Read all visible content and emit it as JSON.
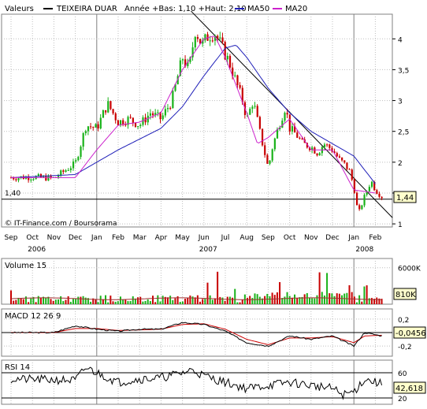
{
  "header": {
    "label": "Valeurs",
    "stock": "TEIXEIRA DUAR",
    "range_text": "Année +Bas: 1,10 +Haut: 2,10",
    "ma50_label": "MA50",
    "ma20_label": "MA20"
  },
  "colors": {
    "stock": "#000000",
    "ma50": "#1f1fb8",
    "ma20": "#cc22cc",
    "up": "#19b219",
    "down": "#c80000",
    "grid": "#bfbfbf",
    "frame": "#808080",
    "macd": "#000000",
    "signal": "#cc0000",
    "volume_ma": "#a03030"
  },
  "credit": "© IT-Finance.com / Boursorama",
  "ref_label": "1,40",
  "last_price_label": "1,44",
  "months": [
    "Sep",
    "Oct",
    "Nov",
    "Dec",
    "Jan",
    "Feb",
    "Mar",
    "Apr",
    "May",
    "Jun",
    "Jul",
    "Aug",
    "Sep",
    "Oct",
    "Nov",
    "Dec",
    "Jan",
    "Feb"
  ],
  "years": [
    "2006",
    "2007",
    "2008"
  ],
  "price_ticks": [
    "4",
    "3,5",
    "3",
    "2,5",
    "2",
    "1,5",
    "1"
  ],
  "volume": {
    "label": "Volume 15",
    "ticks": [
      "6000K"
    ],
    "last_label": "810K"
  },
  "macd": {
    "label": "MACD 12 26 9",
    "ticks": [
      "0,2",
      "-0,2"
    ],
    "last_label": "-0,0456"
  },
  "rsi": {
    "label": "RSI 14",
    "ticks": [
      "60",
      "20"
    ],
    "last_label": "42,618"
  },
  "chart_data": {
    "type": "candlestick",
    "title": "TEIXEIRA DUAR",
    "x_range": [
      "2006-09",
      "2008-02"
    ],
    "ylim": [
      0.95,
      4.4
    ],
    "reference_line": 1.4,
    "last_price": 1.44,
    "close_points": {
      "x_month_index": [
        0,
        1,
        2,
        3,
        3.5,
        4,
        4.5,
        5,
        5.5,
        6,
        6.5,
        7,
        7.5,
        8,
        8.3,
        8.6,
        8.9,
        9.2,
        9.5,
        9.8,
        10.2,
        10.5,
        10.8,
        11,
        11.3,
        11.6,
        12,
        12.2,
        12.5,
        12.8,
        13,
        13.3,
        13.6,
        14,
        14.3,
        14.6,
        15,
        15.3,
        15.6,
        15.8,
        16,
        16.2,
        16.5,
        16.8,
        17,
        17.3
      ],
      "close": [
        1.75,
        1.76,
        1.74,
        1.98,
        2.6,
        2.55,
        2.95,
        2.65,
        2.7,
        2.6,
        2.8,
        2.7,
        3.0,
        3.7,
        3.5,
        4.15,
        3.9,
        4.05,
        4.1,
        3.9,
        3.6,
        3.3,
        3.0,
        2.7,
        3.0,
        2.5,
        1.9,
        2.25,
        2.6,
        2.9,
        2.55,
        2.45,
        2.3,
        2.25,
        2.15,
        2.3,
        2.2,
        2.05,
        1.95,
        1.85,
        1.6,
        1.15,
        1.45,
        1.7,
        1.55,
        1.44
      ]
    },
    "ma50": {
      "x_month_index": [
        0,
        3,
        5,
        7,
        8,
        9,
        10,
        10.5,
        11,
        12,
        13,
        14,
        15,
        16,
        17
      ],
      "values": [
        1.75,
        1.8,
        2.2,
        2.55,
        2.9,
        3.4,
        3.85,
        3.9,
        3.7,
        3.2,
        2.8,
        2.5,
        2.3,
        2.1,
        1.65
      ]
    },
    "ma20": {
      "x_month_index": [
        0,
        3,
        4,
        5,
        6,
        7,
        8,
        9,
        9.5,
        10,
        11,
        11.5,
        12,
        13,
        14,
        15,
        16,
        17
      ],
      "values": [
        1.75,
        1.75,
        2.2,
        2.6,
        2.65,
        2.8,
        3.5,
        4.0,
        4.05,
        3.7,
        2.8,
        2.3,
        2.4,
        2.7,
        2.2,
        2.2,
        1.55,
        1.5
      ]
    },
    "volume_ylim": [
      0,
      7000
    ],
    "volume_unit": "K",
    "macd_ylim": [
      -0.35,
      0.35
    ],
    "macd_last": -0.0456,
    "rsi_ylim": [
      10,
      80
    ],
    "rsi_last": 42.618
  }
}
